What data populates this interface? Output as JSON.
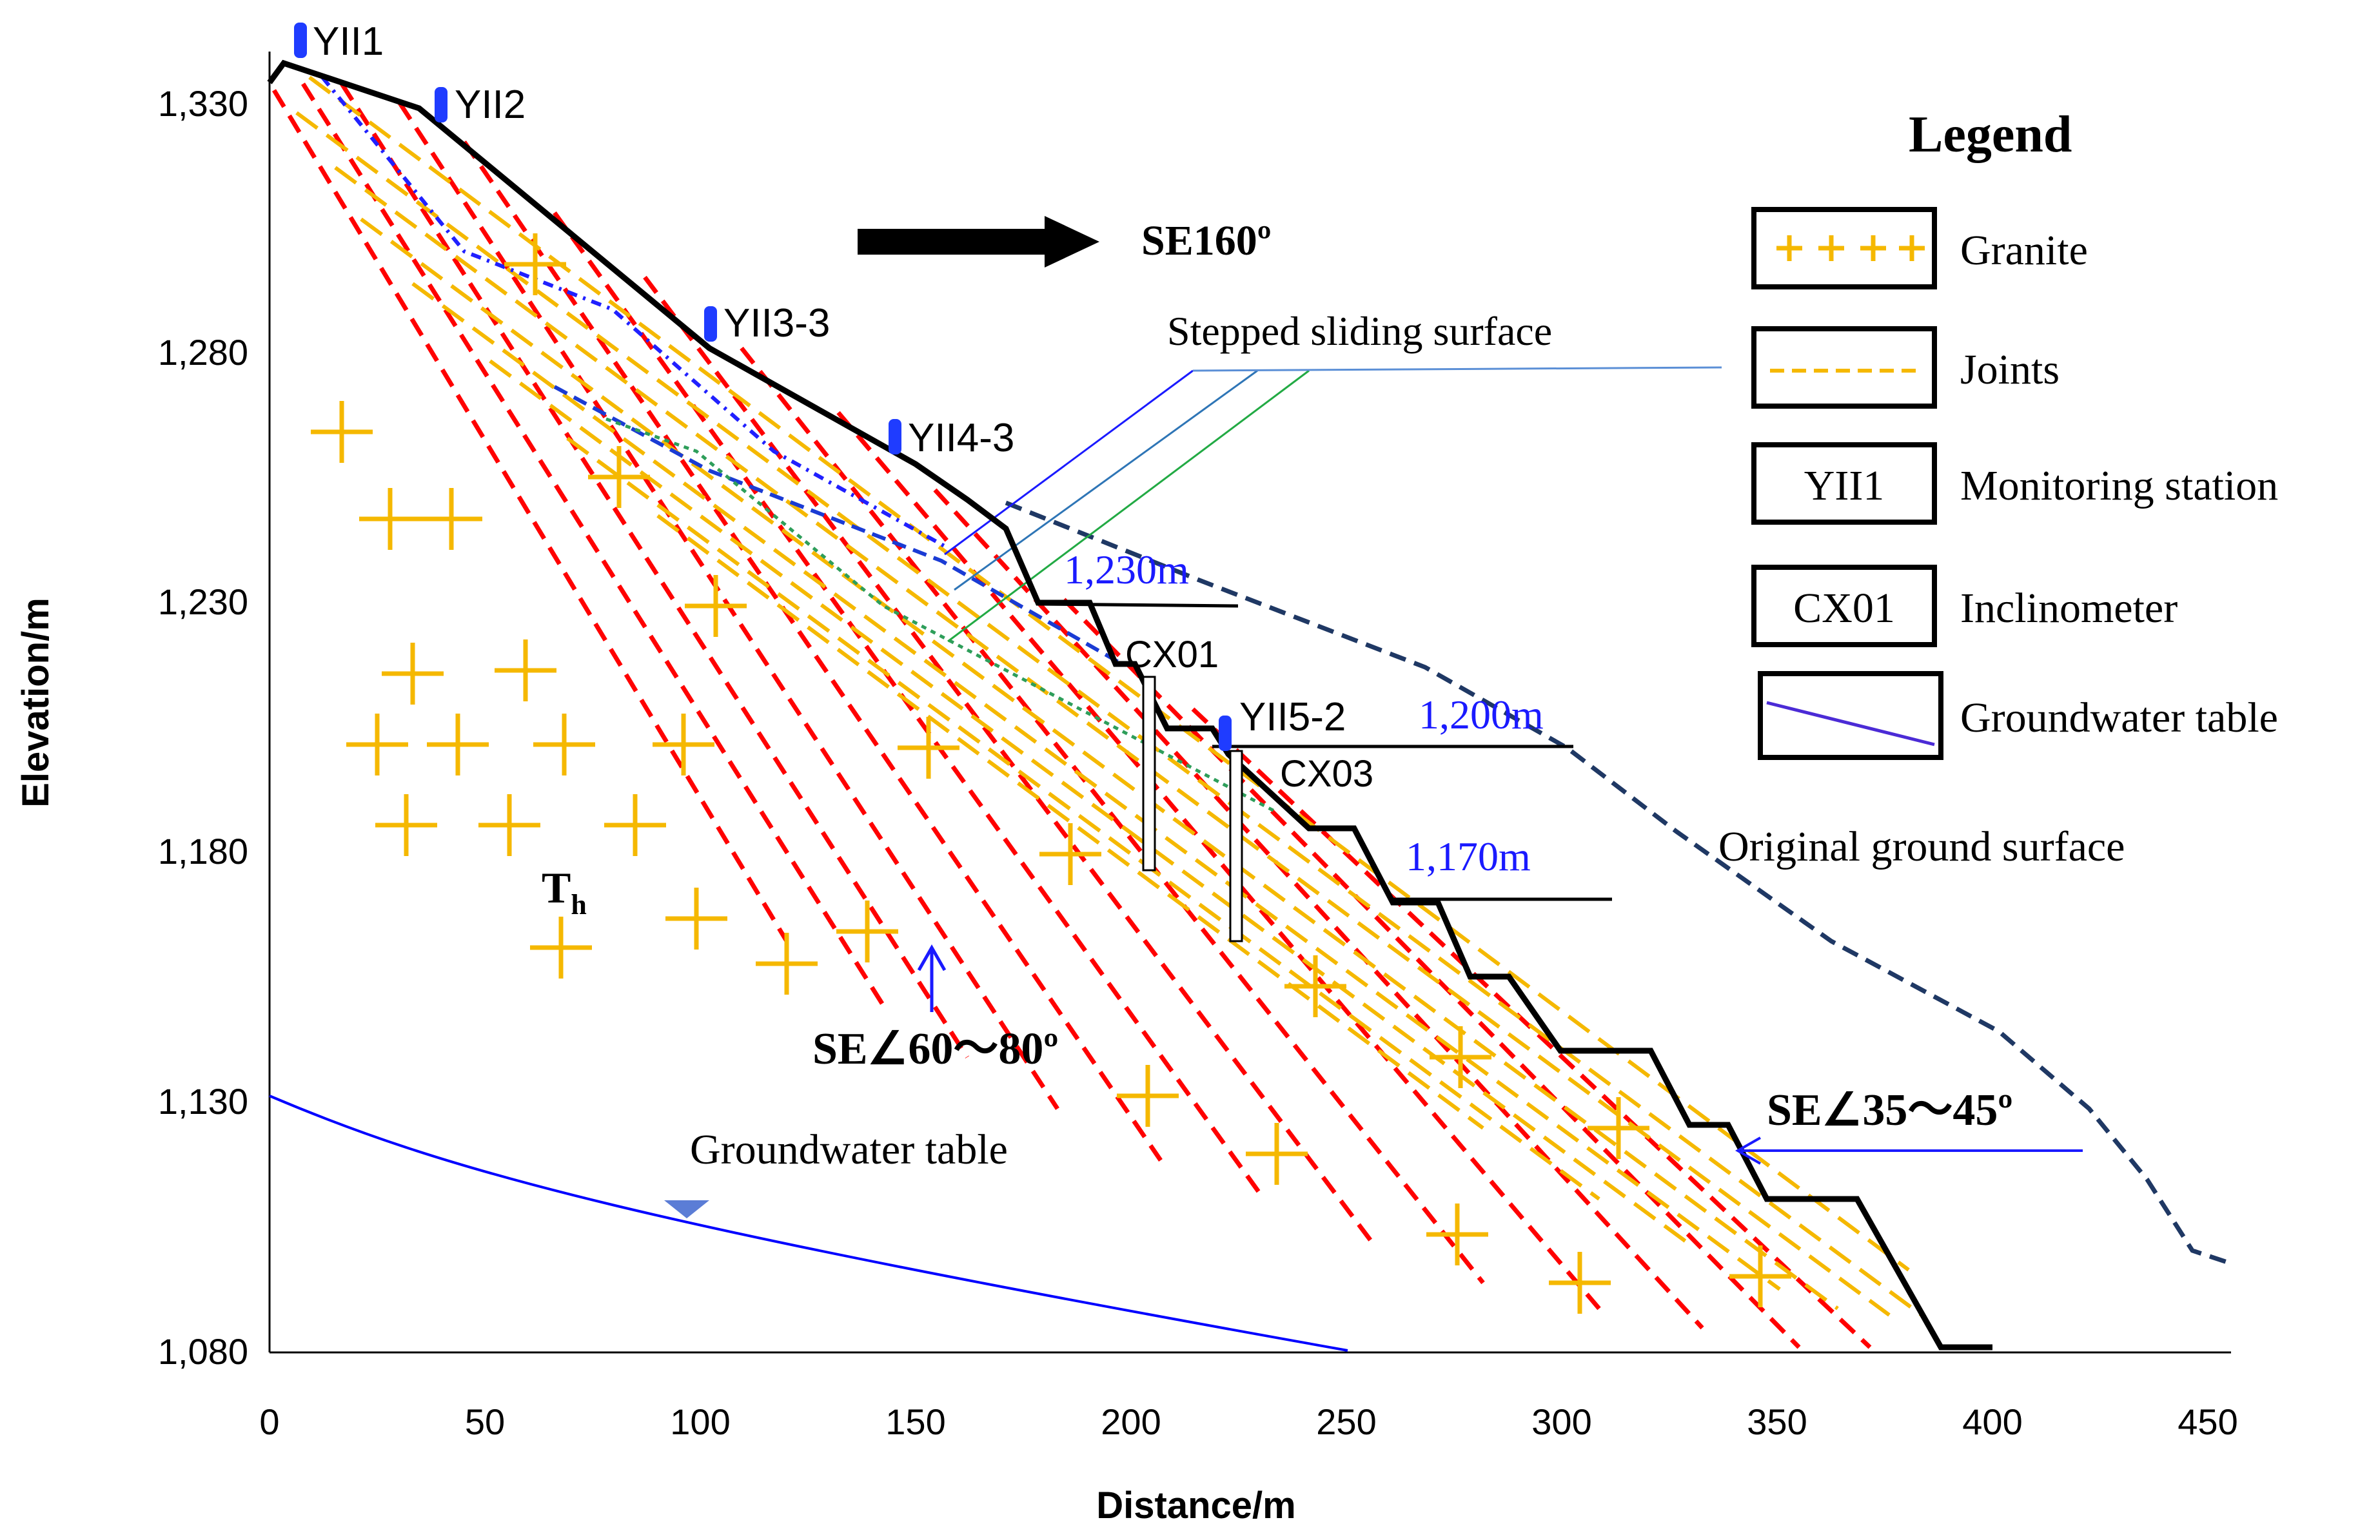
{
  "axes": {
    "x_title": "Distance/m",
    "y_title": "Elevation/m",
    "x_ticks": [
      "0",
      "50",
      "100",
      "150",
      "200",
      "250",
      "300",
      "350",
      "400",
      "450"
    ],
    "y_ticks": [
      "1,330",
      "1,280",
      "1,230",
      "1,180",
      "1,130",
      "1,080"
    ]
  },
  "legend": {
    "title": "Legend",
    "items": [
      {
        "swatch": "++++",
        "label": "Granite"
      },
      {
        "swatch": "dashed",
        "label": "Joints"
      },
      {
        "swatch": "YII1",
        "label": "Monitoring station"
      },
      {
        "swatch": "CX01",
        "label": "Inclinometer"
      },
      {
        "swatch": "line",
        "label": "Groundwater table"
      }
    ]
  },
  "stations": [
    "YII1",
    "YII2",
    "YII3-3",
    "YII4-3",
    "YII5-2"
  ],
  "inclinometers": [
    "CX01",
    "CX03"
  ],
  "annotations": {
    "direction": "SE160º",
    "stepped_sliding": "Stepped sliding surface",
    "elev_1230": "1,230m",
    "elev_1200": "1,200m",
    "elev_1170": "1,170m",
    "original_ground": "Original  ground surface",
    "rock_symbol": "T",
    "rock_sub": "h",
    "steep_joints": "SE∠60～80º",
    "gentle_joints": "SE∠35～45º",
    "groundwater": "Groundwater table"
  },
  "colors": {
    "granite": "#f5b800",
    "joints_red": "#ff0000",
    "joints_orange": "#f5b800",
    "blue": "#0000ff",
    "dark_blue": "#1f3864",
    "station": "#1f3cff"
  }
}
